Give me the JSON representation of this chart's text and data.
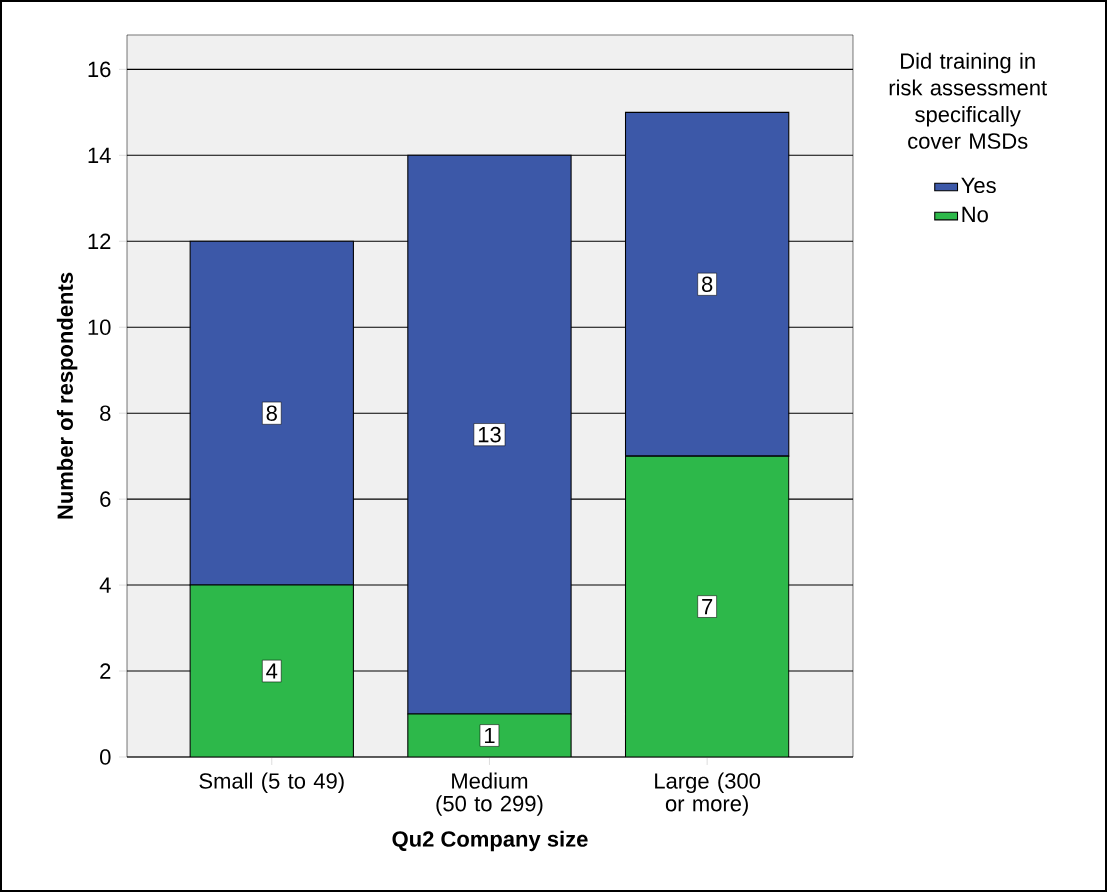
{
  "chart_data": {
    "type": "bar",
    "stacked": true,
    "xlabel": "Qu2 Company size",
    "ylabel": "Number of respondents",
    "legend_title": "Did training in risk assessment specifically cover MSDs",
    "categories": [
      "Small (5 to 49)",
      "Medium (50 to 299)",
      "Large (300 or more)"
    ],
    "series": [
      {
        "name": "No",
        "color": "#2db84a",
        "values": [
          4,
          1,
          7
        ]
      },
      {
        "name": "Yes",
        "color": "#3c58a8",
        "values": [
          8,
          13,
          8
        ]
      }
    ],
    "ylim": [
      0,
      16.8
    ],
    "yticks": [
      0,
      2,
      4,
      6,
      8,
      10,
      12,
      14,
      16
    ],
    "grid": "y",
    "legend": "top right",
    "data_labels": true
  }
}
